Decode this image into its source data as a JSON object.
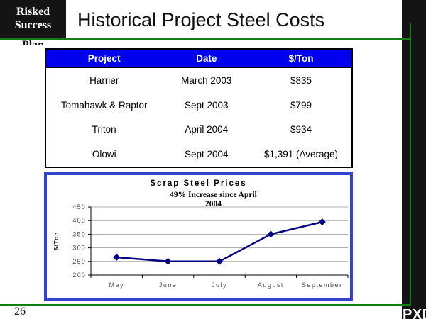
{
  "slide": {
    "title": "Historical Project Steel Costs",
    "page_number": "26",
    "brand": "PXD",
    "logo": {
      "line1": "Risked",
      "line2": "Success",
      "line3_clipped": "Plan"
    },
    "colors": {
      "green": "#127d12",
      "header_blue": "#0000ee",
      "panel_border": "#3344cc",
      "line_navy": "#000080",
      "black_bar": "#141414"
    }
  },
  "table": {
    "headers": [
      "Project",
      "Date",
      "$/Ton"
    ],
    "rows": [
      [
        "Harrier",
        "March 2003",
        "$835"
      ],
      [
        "Tomahawk & Raptor",
        "Sept 2003",
        "$799"
      ],
      [
        "Triton",
        "April 2004",
        "$934"
      ],
      [
        "Olowi",
        "Sept 2004",
        "$1,391 (Average)"
      ]
    ]
  },
  "chart_data": {
    "type": "line",
    "title": "Scrap Steel Prices",
    "annotation": [
      "49% Increase since April",
      "2004"
    ],
    "categories": [
      "May",
      "June",
      "July",
      "August",
      "September"
    ],
    "values": [
      265,
      250,
      250,
      350,
      395
    ],
    "xlabel": "",
    "ylabel": "$/Ton",
    "ylim": [
      200,
      450
    ],
    "ytick_step": 50,
    "grid": true,
    "legend": "none",
    "line_color": "#000080"
  }
}
